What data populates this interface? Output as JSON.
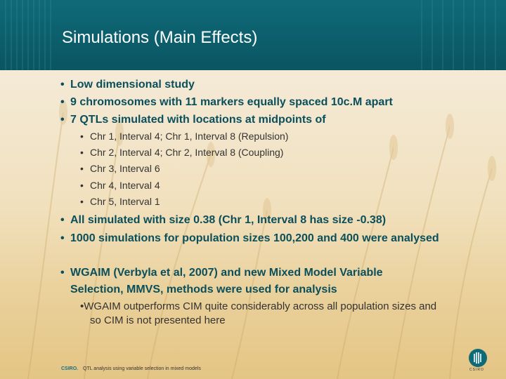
{
  "title": "Simulations (Main Effects)",
  "bullets_top": [
    "Low dimensional study",
    "9 chromosomes with 11 markers equally spaced 10c.M apart",
    "7 QTLs simulated with locations at midpoints of"
  ],
  "sub_bullets": [
    "Chr 1, Interval 4; Chr 1, Interval 8 (Repulsion)",
    "Chr 2, Interval 4; Chr 2, Interval 8 (Coupling)",
    "Chr 3, Interval 6",
    "Chr 4, Interval 4",
    "Chr 5, Interval 1"
  ],
  "bullets_mid": [
    "All simulated with size 0.38 (Chr 1, Interval 8 has size -0.38)",
    "1000 simulations for population sizes 100,200 and 400 were analysed"
  ],
  "bullet_wgaim": {
    "line1": "WGAIM (Verbyla et al, 2007) and new Mixed Model Variable",
    "line2": "Selection, MMVS, methods were used for analysis"
  },
  "bullet_wgaim_sub": {
    "line1": "WGAIM outperforms CIM quite considerably across all population sizes and",
    "line2": "so CIM is not presented here"
  },
  "bullet_symbol": "•",
  "footer": {
    "brand": "CSIRO.",
    "text": "QTL analysis using variable selection in mixed models",
    "logo_text": "CSIRO"
  },
  "colors": {
    "header": "#0f6a78",
    "heading_text": "#0a4f5b",
    "body_text": "#333333"
  }
}
